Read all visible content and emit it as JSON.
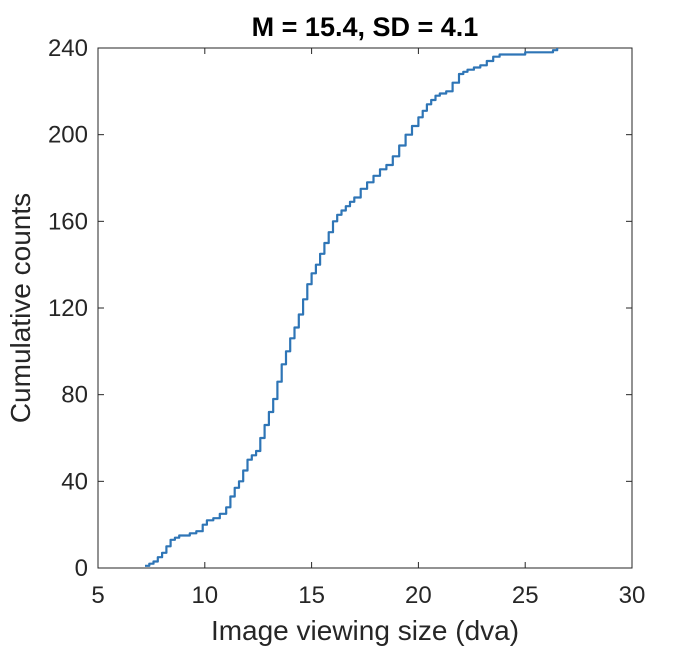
{
  "chart_data": {
    "type": "line",
    "title": "M = 15.4, SD = 4.1",
    "xlabel": "Image viewing size (dva)",
    "ylabel": "Cumulative counts",
    "xlim": [
      5,
      30
    ],
    "ylim": [
      0,
      240
    ],
    "xticks": [
      "5",
      "10",
      "15",
      "20",
      "25",
      "30"
    ],
    "yticks": [
      "0",
      "40",
      "80",
      "120",
      "160",
      "200",
      "240"
    ],
    "grid": false,
    "line_color": "#2e75b6",
    "series": [
      {
        "x": [
          7.2,
          7.4,
          7.6,
          7.8,
          8.0,
          8.2,
          8.4,
          8.6,
          8.8,
          9.0,
          9.3,
          9.6,
          9.9,
          10.1,
          10.4,
          10.7,
          11.0,
          11.2,
          11.4,
          11.6,
          11.8,
          12.0,
          12.2,
          12.4,
          12.6,
          12.8,
          13.0,
          13.2,
          13.4,
          13.6,
          13.8,
          14.0,
          14.2,
          14.4,
          14.6,
          14.8,
          15.0,
          15.2,
          15.4,
          15.6,
          15.8,
          16.0,
          16.2,
          16.4,
          16.6,
          16.8,
          17.0,
          17.3,
          17.6,
          17.9,
          18.2,
          18.5,
          18.8,
          19.1,
          19.4,
          19.7,
          20.0,
          20.2,
          20.4,
          20.6,
          20.8,
          21.0,
          21.3,
          21.6,
          21.9,
          22.1,
          22.3,
          22.6,
          22.9,
          23.2,
          23.5,
          23.8,
          24.1,
          24.5,
          25.0,
          25.5,
          26.0,
          26.3,
          26.5
        ],
        "y": [
          1,
          2,
          3,
          5,
          7,
          10,
          13,
          14,
          15,
          15,
          16,
          17,
          20,
          22,
          23,
          25,
          28,
          33,
          37,
          40,
          45,
          50,
          52,
          54,
          60,
          66,
          72,
          78,
          86,
          94,
          100,
          106,
          111,
          117,
          124,
          131,
          136,
          140,
          145,
          150,
          155,
          160,
          163,
          165,
          167,
          169,
          171,
          175,
          178,
          181,
          184,
          186,
          190,
          195,
          200,
          204,
          208,
          211,
          214,
          216,
          218,
          219,
          220,
          224,
          228,
          229,
          230,
          231,
          232,
          234,
          236,
          237,
          237,
          237,
          238,
          238,
          238,
          239,
          240
        ]
      }
    ]
  }
}
